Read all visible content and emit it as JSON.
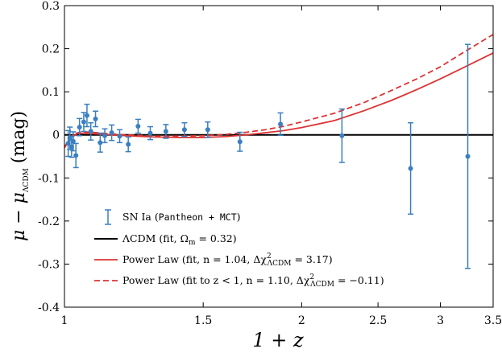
{
  "chart_data": {
    "type": "scatter",
    "xlabel": "1 + z",
    "ylabel": "μ − μΛCDM (mag)",
    "ylabel_parts": {
      "main": "μ − μ",
      "sub": "ΛCDM",
      "unit": "(mag)"
    },
    "xscale": "log",
    "xlim": [
      1.0,
      3.5
    ],
    "ylim": [
      -0.4,
      0.3
    ],
    "x_ticks": [
      1,
      1.5,
      2,
      2.5,
      3,
      3.5
    ],
    "x_tick_labels": [
      "1",
      "1.5",
      "2",
      "2.5",
      "3",
      "3.5"
    ],
    "y_ticks": [
      -0.4,
      -0.3,
      -0.2,
      -0.1,
      0,
      0.1,
      0.2,
      0.3
    ],
    "y_tick_labels": [
      "-0.4",
      "-0.3",
      "-0.2",
      "-0.1",
      "0",
      "0.1",
      "0.2",
      "0.3"
    ],
    "grid": false,
    "legend_position": "bottom-left",
    "colors": {
      "data": "#3a7fc0",
      "lcdm": "#000000",
      "power": "#dd3333"
    },
    "series": [
      {
        "name": "SN Ia (Pantheon + MCT)",
        "legend_parts": {
          "prefix": "SN Ia (",
          "mono": "Pantheon + MCT",
          "suffix": ")"
        },
        "kind": "errorbar",
        "x": [
          1.011,
          1.016,
          1.021,
          1.026,
          1.034,
          1.045,
          1.058,
          1.068,
          1.08,
          1.095,
          1.11,
          1.125,
          1.148,
          1.175,
          1.205,
          1.24,
          1.285,
          1.345,
          1.42,
          1.52,
          1.67,
          1.88,
          2.25,
          2.75,
          3.25
        ],
        "y": [
          -0.02,
          -0.008,
          -0.028,
          -0.015,
          -0.048,
          0.018,
          0.03,
          0.045,
          0.008,
          0.037,
          -0.018,
          -0.002,
          0.005,
          -0.003,
          -0.022,
          0.02,
          0.004,
          0.008,
          0.012,
          0.012,
          -0.016,
          0.025,
          -0.002,
          -0.078,
          -0.05
        ],
        "yerr": [
          0.03,
          0.026,
          0.024,
          0.022,
          0.028,
          0.02,
          0.022,
          0.026,
          0.02,
          0.018,
          0.022,
          0.016,
          0.018,
          0.015,
          0.017,
          0.016,
          0.015,
          0.016,
          0.016,
          0.018,
          0.022,
          0.026,
          0.062,
          0.106,
          0.26
        ]
      },
      {
        "name": "ΛCDM (fit, Ωm = 0.32)",
        "legend_parts": {
          "a": "ΛCDM (fit, Ω",
          "sub": "m",
          "b": " = 0.32)"
        },
        "kind": "line",
        "style": "solid",
        "color": "#000000",
        "x": [
          1.0,
          3.5
        ],
        "y": [
          0,
          0
        ]
      },
      {
        "name": "Power Law (fit, n = 1.04, Δχ²ΛCDM = 3.17)",
        "legend_parts": {
          "a": "Power Law (fit, n = 1.04, Δχ",
          "sup": "2",
          "sub": "ΛCDM",
          "b": " = 3.17)"
        },
        "kind": "line",
        "style": "solid",
        "color": "#dd3333",
        "x": [
          1.0,
          1.02,
          1.04,
          1.06,
          1.08,
          1.1,
          1.15,
          1.2,
          1.3,
          1.4,
          1.5,
          1.6,
          1.7,
          1.8,
          1.9,
          2.0,
          2.2,
          2.4,
          2.6,
          2.8,
          3.0,
          3.2,
          3.5
        ],
        "y": [
          -0.03,
          -0.005,
          0.003,
          0.004,
          0.003,
          0.002,
          0.0,
          -0.002,
          -0.005,
          -0.006,
          -0.006,
          -0.004,
          0.0,
          0.005,
          0.01,
          0.017,
          0.033,
          0.056,
          0.08,
          0.105,
          0.13,
          0.155,
          0.19
        ]
      },
      {
        "name": "Power Law (fit to z < 1, n = 1.10, Δχ²ΛCDM = −0.11)",
        "legend_parts": {
          "a": "Power Law (fit to z < 1, n = 1.10, Δχ",
          "sup": "2",
          "sub": "ΛCDM",
          "b": " = −0.11)"
        },
        "kind": "line",
        "style": "dashed",
        "color": "#dd3333",
        "x": [
          1.0,
          1.02,
          1.04,
          1.06,
          1.08,
          1.1,
          1.15,
          1.2,
          1.3,
          1.4,
          1.5,
          1.6,
          1.7,
          1.8,
          1.9,
          2.0,
          2.2,
          2.4,
          2.6,
          2.8,
          3.0,
          3.2,
          3.5
        ],
        "y": [
          -0.028,
          -0.003,
          0.005,
          0.007,
          0.006,
          0.005,
          0.002,
          0.0,
          -0.003,
          -0.003,
          -0.002,
          0.001,
          0.006,
          0.012,
          0.02,
          0.03,
          0.05,
          0.075,
          0.103,
          0.13,
          0.158,
          0.19,
          0.233
        ]
      }
    ]
  }
}
